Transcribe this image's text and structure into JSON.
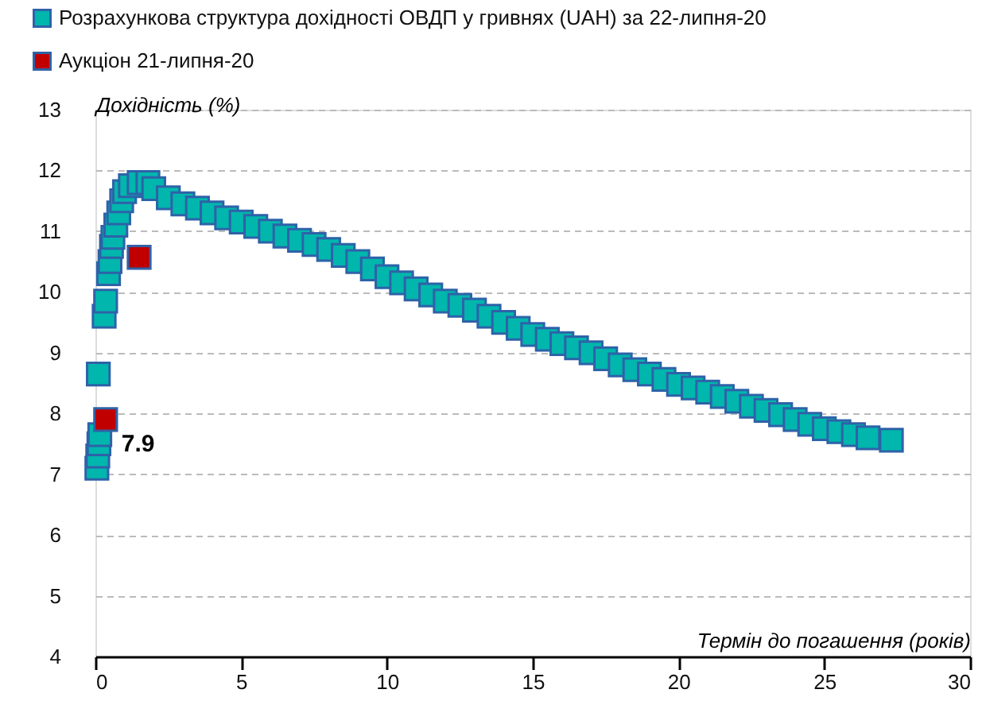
{
  "chart_data": {
    "type": "scatter",
    "xlabel": "Термін до погашення (років)",
    "ylabel": "Дохідність (%)",
    "series": [
      {
        "name": "Розрахункова структура дохідності ОВДП у гривнях (UAH) за 22-липня-20",
        "color": "#00b6ad",
        "x": [
          0.05,
          0.08,
          0.12,
          0.15,
          0.1,
          0.3,
          0.35,
          0.45,
          0.5,
          0.55,
          0.6,
          0.7,
          0.8,
          0.9,
          1.0,
          1.2,
          1.5,
          1.8,
          2.0,
          2.5,
          3.0,
          3.5,
          4.0,
          4.5,
          5.0,
          5.5,
          6.0,
          6.5,
          7.0,
          7.5,
          8.0,
          8.5,
          9.0,
          9.5,
          10.0,
          10.5,
          11.0,
          11.5,
          12.0,
          12.5,
          13.0,
          13.5,
          14.0,
          14.5,
          15.0,
          15.5,
          16.0,
          16.5,
          17.0,
          17.5,
          18.0,
          18.5,
          19.0,
          19.5,
          20.0,
          20.5,
          21.0,
          21.5,
          22.0,
          22.5,
          23.0,
          23.5,
          24.0,
          24.5,
          25.0,
          25.5,
          26.0,
          26.5,
          27.3
        ],
        "values": [
          7.1,
          7.3,
          7.5,
          7.65,
          8.65,
          9.6,
          9.85,
          10.3,
          10.5,
          10.75,
          10.9,
          11.1,
          11.3,
          11.5,
          11.65,
          11.75,
          11.8,
          11.8,
          11.7,
          11.55,
          11.45,
          11.38,
          11.3,
          11.22,
          11.15,
          11.08,
          11.0,
          10.92,
          10.85,
          10.78,
          10.7,
          10.6,
          10.5,
          10.38,
          10.25,
          10.15,
          10.05,
          9.95,
          9.85,
          9.78,
          9.7,
          9.6,
          9.5,
          9.4,
          9.3,
          9.22,
          9.15,
          9.08,
          9.0,
          8.9,
          8.8,
          8.72,
          8.65,
          8.56,
          8.48,
          8.42,
          8.35,
          8.28,
          8.2,
          8.12,
          8.05,
          7.98,
          7.9,
          7.82,
          7.75,
          7.7,
          7.65,
          7.6,
          7.56
        ]
      },
      {
        "name": "Аукціон 21-липня-20",
        "color": "#c00000",
        "x": [
          0.35,
          1.5
        ],
        "values": [
          7.9,
          10.57
        ],
        "value_labels": [
          "7.9",
          null
        ]
      }
    ],
    "xlim": [
      0,
      30
    ],
    "xticks": [
      0,
      5,
      10,
      15,
      20,
      25,
      30
    ],
    "ylim": [
      4,
      13
    ],
    "yticks": [
      4,
      5,
      6,
      7,
      8,
      9,
      10,
      11,
      12,
      13
    ],
    "grid": "y",
    "legend": "top left",
    "marker": "square"
  }
}
